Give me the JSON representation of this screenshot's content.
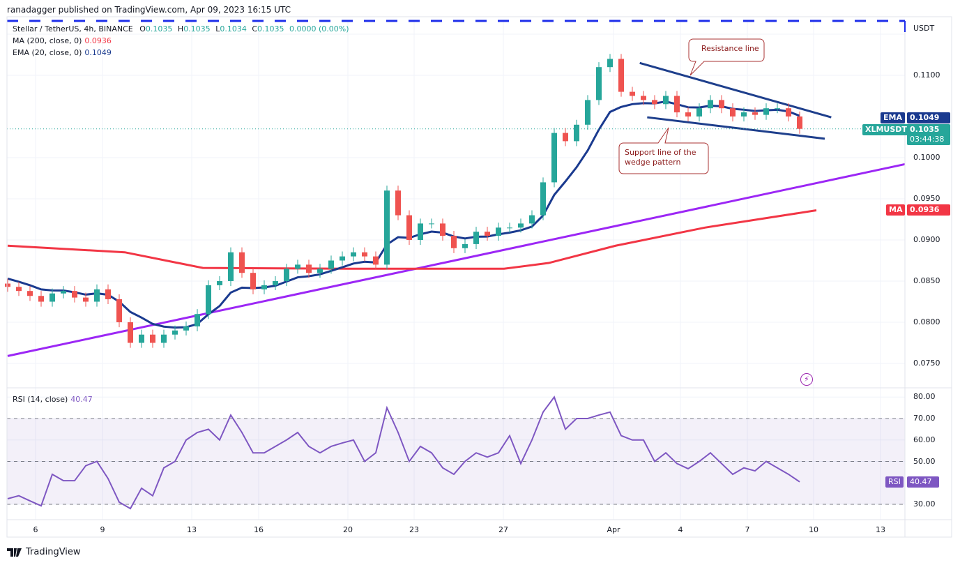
{
  "header": {
    "published": "ranadagger published on TradingView.com, Apr 09, 2023 16:15 UTC",
    "symbol": "Stellar / TetherUS, 4h, BINANCE",
    "ohlc": {
      "o_label": "O",
      "o": "0.1035",
      "h_label": "H",
      "h": "0.1035",
      "l_label": "L",
      "l": "0.1034",
      "c_label": "C",
      "c": "0.1035",
      "change": "0.0000 (0.00%)"
    },
    "ma": {
      "label": "MA (200, close, 0)",
      "value": "0.0936"
    },
    "ema": {
      "label": "EMA (20, close, 0)",
      "value": "0.1049"
    },
    "rsi": {
      "label": "RSI (14, close)",
      "value": "40.47"
    }
  },
  "price_axis": {
    "unit": "USDT",
    "ticks": [
      "0.1100",
      "0.1000",
      "0.0950",
      "0.0900",
      "0.0850",
      "0.0800",
      "0.0750"
    ]
  },
  "rsi_axis": {
    "ticks": [
      "80.00",
      "70.00",
      "60.00",
      "50.00",
      "30.00"
    ]
  },
  "time_axis": {
    "ticks": [
      "6",
      "9",
      "13",
      "16",
      "20",
      "23",
      "27",
      "Apr",
      "4",
      "7",
      "10",
      "13"
    ]
  },
  "tags": {
    "ema": {
      "name": "EMA",
      "value": "0.1049"
    },
    "last": {
      "name": "XLMUSDT",
      "value": "0.1035",
      "countdown": "03:44:38"
    },
    "ma": {
      "name": "MA",
      "value": "0.0936"
    },
    "rsi": {
      "name": "RSI",
      "value": "40.47"
    }
  },
  "annotations": {
    "resistance": "Resistance line",
    "support": "Support line of the wedge pattern"
  },
  "footer": {
    "brand": "TradingView"
  },
  "colors": {
    "up": "#26a69a",
    "down": "#ef5350",
    "ema": "#1a3a8f",
    "ma": "#f23645",
    "trend": "#9c27f5",
    "rsi": "#7e57c2",
    "wedge": "#1e3f8c",
    "top_dash": "#1e2eea"
  },
  "icons": {
    "alert": "lightning-icon",
    "logo": "tradingview-logo"
  },
  "chart_data": {
    "type": "candlestick",
    "title": "Stellar / TetherUS, 4h, BINANCE",
    "ylabel": "USDT",
    "ylim": [
      0.0735,
      0.115
    ],
    "rsi_ylim": [
      23,
      83
    ],
    "grid": true,
    "x": [
      "03-04T18",
      "03-05T06",
      "03-05T18",
      "03-06T06",
      "03-06T18",
      "03-07T06",
      "03-07T18",
      "03-08T06",
      "03-08T18",
      "03-09T06",
      "03-09T18",
      "03-10T06",
      "03-10T18",
      "03-11T06",
      "03-11T18",
      "03-12T06",
      "03-12T18",
      "03-13T06",
      "03-13T18",
      "03-14T06",
      "03-14T18",
      "03-15T06",
      "03-15T18",
      "03-16T06",
      "03-16T18",
      "03-17T06",
      "03-17T18",
      "03-18T06",
      "03-18T18",
      "03-19T06",
      "03-19T18",
      "03-20T06",
      "03-20T18",
      "03-21T06",
      "03-21T18",
      "03-22T06",
      "03-22T18",
      "03-23T06",
      "03-23T18",
      "03-24T06",
      "03-24T18",
      "03-25T06",
      "03-25T18",
      "03-26T06",
      "03-26T18",
      "03-27T06",
      "03-27T18",
      "03-28T06",
      "03-28T18",
      "03-29T06",
      "03-29T18",
      "03-30T06",
      "03-30T18",
      "03-31T06",
      "03-31T18",
      "04-01T06",
      "04-01T18",
      "04-02T06",
      "04-02T18",
      "04-03T06",
      "04-03T18",
      "04-04T06",
      "04-04T18",
      "04-05T06",
      "04-05T18",
      "04-06T06",
      "04-06T18",
      "04-07T06",
      "04-07T18",
      "04-08T06",
      "04-08T18",
      "04-09T06"
    ],
    "close": [
      0.0843,
      0.0838,
      0.0832,
      0.0825,
      0.0835,
      0.0838,
      0.083,
      0.0825,
      0.084,
      0.0828,
      0.08,
      0.0775,
      0.0785,
      0.0775,
      0.0785,
      0.079,
      0.0795,
      0.081,
      0.0845,
      0.085,
      0.0885,
      0.086,
      0.084,
      0.0845,
      0.085,
      0.0865,
      0.087,
      0.086,
      0.0865,
      0.0875,
      0.088,
      0.0885,
      0.088,
      0.087,
      0.096,
      0.093,
      0.09,
      0.092,
      0.092,
      0.0905,
      0.089,
      0.0895,
      0.091,
      0.0905,
      0.0915,
      0.0915,
      0.092,
      0.093,
      0.097,
      0.103,
      0.102,
      0.104,
      0.107,
      0.111,
      0.112,
      0.108,
      0.1075,
      0.107,
      0.1065,
      0.1075,
      0.1055,
      0.105,
      0.106,
      0.107,
      0.106,
      0.105,
      0.1055,
      0.1052,
      0.106,
      0.106,
      0.105,
      0.1035
    ],
    "rsi": [
      32.6,
      34,
      31.6,
      29.3,
      44,
      41,
      41,
      48,
      50,
      42,
      31,
      28,
      37.5,
      34,
      47,
      50,
      60,
      63.5,
      65,
      60,
      71.6,
      63.5,
      54,
      54,
      57,
      60,
      63.5,
      57,
      54,
      57,
      58.6,
      60,
      50,
      54,
      75,
      63.5,
      50,
      57,
      54,
      47,
      44,
      50,
      54,
      52,
      54,
      62,
      49,
      60,
      73,
      80,
      65,
      70,
      70,
      71.6,
      73,
      62,
      60,
      60,
      50,
      54,
      49,
      46.6,
      50,
      54,
      49,
      44,
      47,
      45.6,
      50,
      47,
      44,
      40.47
    ],
    "ma200": [
      [
        "03-04T18",
        0.0893
      ],
      [
        "03-10T00",
        0.0885
      ],
      [
        "03-13T12",
        0.0866
      ],
      [
        "03-20T00",
        0.0865
      ],
      [
        "03-27T00",
        0.0865
      ],
      [
        "03-29T00",
        0.0872
      ],
      [
        "04-01T00",
        0.0893
      ],
      [
        "04-05T00",
        0.0915
      ],
      [
        "04-10T00",
        0.0936
      ]
    ],
    "trendlines": [
      {
        "name": "ascending-support",
        "from": [
          "03-04T18",
          0.0759
        ],
        "to": [
          "04-13T23",
          0.0992
        ]
      },
      {
        "name": "resistance-line",
        "from": [
          "04-02T02",
          0.1115
        ],
        "to": [
          "04-10T16",
          0.1049
        ]
      },
      {
        "name": "wedge-support-line",
        "from": [
          "04-02T10",
          0.1049
        ],
        "to": [
          "04-10T09",
          0.1023
        ]
      }
    ],
    "rsi_bands": [
      30,
      50,
      70
    ]
  }
}
